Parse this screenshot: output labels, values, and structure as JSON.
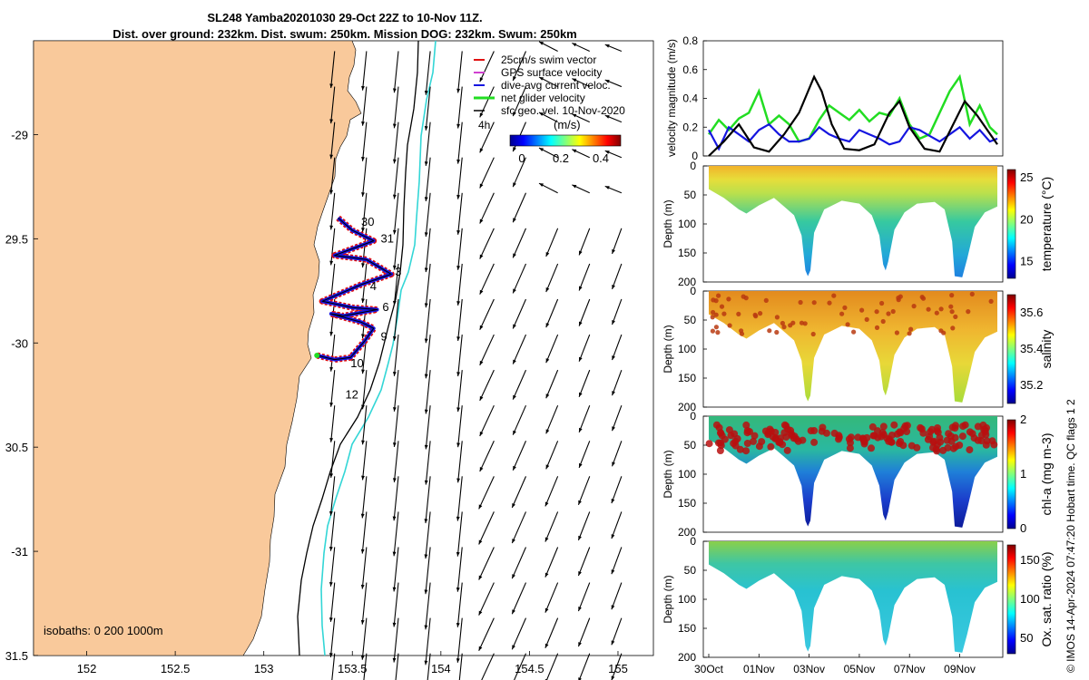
{
  "title_line1": "SL248 Yamba20201030 29-Oct 22Z to 10-Nov 11Z.",
  "title_line2": "Dist. over ground: 232km. Dist. swum: 250km. Mission DOG: 232km. Swum: 250km",
  "credit": "© IMOS 14-Apr-2024 07:47:20 Hobart time. QC flags 1  2",
  "colors": {
    "land": "#f9c99b",
    "track": "#1515e0",
    "swim": "#e01010",
    "net": "#22dd22",
    "current": "#2d2dd6",
    "isobath_200": "#000000",
    "isobath_1000": "#33d6d6"
  },
  "chart_data": [
    {
      "type": "scatter",
      "name": "map",
      "xlim": [
        151.7,
        155.2
      ],
      "ylim": [
        -31.5,
        -28.55
      ],
      "xticks": [
        152,
        152.5,
        153,
        153.5,
        154,
        154.5,
        155
      ],
      "yticks": [
        -29,
        -29.5,
        -30,
        -30.5,
        -31,
        -31.5
      ],
      "ytick_labels": [
        "-29",
        "29.5",
        "-30",
        "30.5",
        "-31",
        "31.5"
      ],
      "legend": [
        "25cm/s swim vector",
        "GPS surface velocity",
        "dive-avg current veloc.",
        "net glider velocity",
        "sfc geo. vel. 10-Nov-2020"
      ],
      "colorbar": {
        "label": "(m/s)",
        "ticks": [
          0,
          0.2,
          0.4
        ],
        "range": [
          0,
          0.5
        ]
      },
      "scale_label": "4h",
      "isobaths_label": "isobaths: 0   200  1000m",
      "day_labels": [
        {
          "text": "30",
          "lon": 153.55,
          "lat": -29.42
        },
        {
          "text": "31",
          "lon": 153.66,
          "lat": -29.5
        },
        {
          "text": "3",
          "lon": 153.74,
          "lat": -29.66
        },
        {
          "text": "4",
          "lon": 153.6,
          "lat": -29.73
        },
        {
          "text": "6",
          "lon": 153.67,
          "lat": -29.83
        },
        {
          "text": "9",
          "lon": 153.66,
          "lat": -29.97
        },
        {
          "text": "10",
          "lon": 153.49,
          "lat": -30.1
        },
        {
          "text": "12",
          "lon": 153.46,
          "lat": -30.25
        }
      ],
      "glider_track": [
        {
          "lon": 153.42,
          "lat": -29.4
        },
        {
          "lon": 153.5,
          "lat": -29.46
        },
        {
          "lon": 153.62,
          "lat": -29.51
        },
        {
          "lon": 153.4,
          "lat": -29.58
        },
        {
          "lon": 153.58,
          "lat": -29.6
        },
        {
          "lon": 153.72,
          "lat": -29.67
        },
        {
          "lon": 153.55,
          "lat": -29.72
        },
        {
          "lon": 153.33,
          "lat": -29.8
        },
        {
          "lon": 153.5,
          "lat": -29.83
        },
        {
          "lon": 153.64,
          "lat": -29.84
        },
        {
          "lon": 153.45,
          "lat": -29.87
        },
        {
          "lon": 153.38,
          "lat": -29.86
        },
        {
          "lon": 153.55,
          "lat": -29.9
        },
        {
          "lon": 153.62,
          "lat": -29.93
        },
        {
          "lon": 153.57,
          "lat": -29.99
        },
        {
          "lon": 153.49,
          "lat": -30.07
        },
        {
          "lon": 153.4,
          "lat": -30.08
        },
        {
          "lon": 153.3,
          "lat": -30.06
        }
      ]
    },
    {
      "type": "line",
      "name": "velocity",
      "ylabel": "velocity magnitude (m/s)",
      "ylim": [
        0,
        0.8
      ],
      "yticks": [
        0,
        0.2,
        0.4,
        0.6,
        0.8
      ],
      "x_days": [
        0,
        11.5
      ],
      "series": [
        {
          "color": "#22dd22",
          "x": [
            0,
            0.4,
            0.8,
            1.2,
            1.6,
            2,
            2.4,
            2.8,
            3.2,
            3.6,
            4,
            4.4,
            4.8,
            5.2,
            5.6,
            6,
            6.4,
            6.8,
            7.2,
            7.6,
            8,
            8.4,
            8.8,
            9.2,
            9.6,
            10,
            10.4,
            10.8,
            11.2,
            11.5
          ],
          "values": [
            0.15,
            0.25,
            0.18,
            0.26,
            0.3,
            0.45,
            0.22,
            0.28,
            0.22,
            0.1,
            0.12,
            0.25,
            0.35,
            0.3,
            0.25,
            0.32,
            0.24,
            0.3,
            0.28,
            0.4,
            0.22,
            0.12,
            0.15,
            0.3,
            0.45,
            0.55,
            0.22,
            0.35,
            0.2,
            0.15
          ]
        },
        {
          "color": "#1515e0",
          "x": [
            0,
            0.4,
            0.8,
            1.2,
            1.6,
            2,
            2.4,
            2.8,
            3.2,
            3.6,
            4,
            4.4,
            4.8,
            5.2,
            5.6,
            6,
            6.4,
            6.8,
            7.2,
            7.6,
            8,
            8.4,
            8.8,
            9.2,
            9.6,
            10,
            10.4,
            10.8,
            11.2,
            11.5
          ],
          "values": [
            0.18,
            0.05,
            0.2,
            0.15,
            0.1,
            0.18,
            0.22,
            0.15,
            0.1,
            0.1,
            0.12,
            0.2,
            0.15,
            0.12,
            0.1,
            0.18,
            0.15,
            0.12,
            0.08,
            0.1,
            0.2,
            0.18,
            0.14,
            0.1,
            0.15,
            0.2,
            0.12,
            0.18,
            0.1,
            0.12
          ]
        },
        {
          "color": "#000000",
          "x": [
            0,
            0.6,
            1.2,
            1.8,
            2.4,
            3,
            3.6,
            4.2,
            4.5,
            4.9,
            5.4,
            6,
            6.6,
            7.2,
            7.6,
            8,
            8.6,
            9.2,
            9.8,
            10.2,
            10.7,
            11.1,
            11.5
          ],
          "values": [
            0,
            0.1,
            0.22,
            0.06,
            0.03,
            0.15,
            0.3,
            0.55,
            0.45,
            0.22,
            0.05,
            0.04,
            0.08,
            0.3,
            0.38,
            0.2,
            0.05,
            0.03,
            0.24,
            0.38,
            0.28,
            0.18,
            0.08
          ]
        }
      ]
    },
    {
      "type": "heatmap",
      "name": "temperature",
      "ylabel": "Depth (m)",
      "clabel": "temperature (°C)",
      "ylim": [
        200,
        0
      ],
      "yticks": [
        0,
        50,
        100,
        150,
        200
      ],
      "cticks": [
        15,
        20,
        25
      ],
      "crange": [
        13,
        26
      ]
    },
    {
      "type": "heatmap",
      "name": "salinity",
      "ylabel": "Depth (m)",
      "clabel": "salinity",
      "ylim": [
        200,
        0
      ],
      "yticks": [
        0,
        50,
        100,
        150,
        200
      ],
      "cticks": [
        35.2,
        35.4,
        35.6
      ],
      "crange": [
        35.1,
        35.7
      ]
    },
    {
      "type": "heatmap",
      "name": "chl-a",
      "ylabel": "Depth (m)",
      "clabel": "chl-a (mg m-3)",
      "ylim": [
        200,
        0
      ],
      "yticks": [
        0,
        50,
        100,
        150,
        200
      ],
      "cticks": [
        0,
        1,
        2
      ],
      "crange": [
        0,
        2
      ]
    },
    {
      "type": "heatmap",
      "name": "oxygen",
      "ylabel": "Depth (m)",
      "clabel": "Ox. sat. ratio (%)",
      "ylim": [
        200,
        0
      ],
      "yticks": [
        0,
        50,
        100,
        150,
        200
      ],
      "cticks": [
        50,
        100,
        150
      ],
      "crange": [
        30,
        170
      ],
      "xticks": [
        "30Oct",
        "01Nov",
        "03Nov",
        "05Nov",
        "07Nov",
        "09Nov"
      ]
    }
  ]
}
